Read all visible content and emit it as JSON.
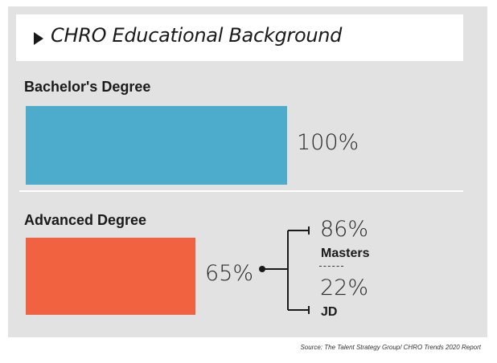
{
  "title": "CHRO Educational Background",
  "source": "Source: The Talent Strategy Group/ CHRO Trends 2020 Report",
  "chart_data": {
    "type": "bar",
    "orientation": "horizontal",
    "title": "CHRO Educational Background",
    "categories": [
      "Bachelor's Degree",
      "Advanced Degree"
    ],
    "values": [
      100,
      65
    ],
    "value_labels": [
      "100%",
      "65%"
    ],
    "colors": [
      "#4dabcb",
      "#f06240"
    ],
    "xlim": [
      0,
      100
    ],
    "breakdown": {
      "parent": "Advanced Degree",
      "items": [
        {
          "name": "Masters",
          "value": 86,
          "label": "86%"
        },
        {
          "name": "JD",
          "value": 22,
          "label": "22%"
        }
      ]
    }
  }
}
